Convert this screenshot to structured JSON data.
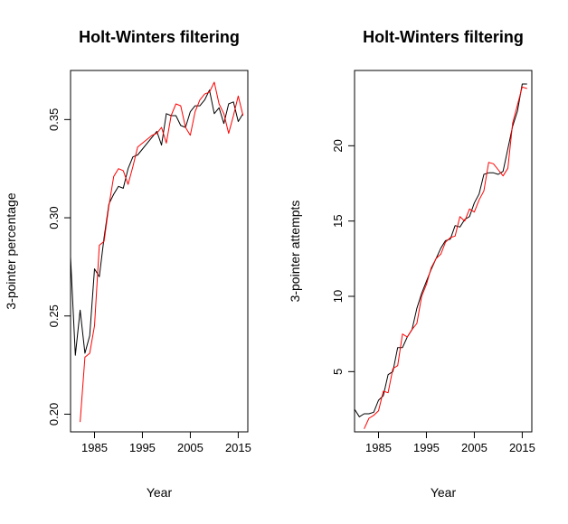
{
  "colors": {
    "observed": "#000000",
    "fitted": "#ff0000"
  },
  "chart_data": [
    {
      "type": "line",
      "title": "Holt-Winters filtering",
      "xlabel": "Year",
      "ylabel": "3-pointer percentage",
      "xlim": [
        1980,
        2017
      ],
      "ylim": [
        0.191,
        0.375
      ],
      "xticks": [
        1985,
        1995,
        2005,
        2015
      ],
      "yticks": [
        0.2,
        0.25,
        0.3,
        0.35
      ],
      "ytick_labels": [
        "0.20",
        "0.25",
        "0.30",
        "0.35"
      ],
      "grid": false,
      "series": [
        {
          "role": "observed",
          "color": "#000000",
          "x": [
            1980,
            1981,
            1982,
            1983,
            1984,
            1985,
            1986,
            1987,
            1988,
            1989,
            1990,
            1991,
            1992,
            1993,
            1994,
            1995,
            1996,
            1997,
            1998,
            1999,
            2000,
            2001,
            2002,
            2003,
            2004,
            2005,
            2006,
            2007,
            2008,
            2009,
            2010,
            2011,
            2012,
            2013,
            2014,
            2015,
            2016
          ],
          "values": [
            0.28,
            0.23,
            0.253,
            0.231,
            0.24,
            0.274,
            0.27,
            0.29,
            0.307,
            0.312,
            0.316,
            0.315,
            0.325,
            0.331,
            0.332,
            0.335,
            0.338,
            0.341,
            0.344,
            0.337,
            0.353,
            0.352,
            0.352,
            0.347,
            0.346,
            0.354,
            0.357,
            0.357,
            0.36,
            0.365,
            0.353,
            0.356,
            0.348,
            0.358,
            0.359,
            0.349,
            0.353
          ]
        },
        {
          "role": "fitted",
          "color": "#ff0000",
          "x": [
            1982,
            1983,
            1984,
            1985,
            1986,
            1987,
            1988,
            1989,
            1990,
            1991,
            1992,
            1993,
            1994,
            1995,
            1996,
            1997,
            1998,
            1999,
            2000,
            2001,
            2002,
            2003,
            2004,
            2005,
            2006,
            2007,
            2008,
            2009,
            2010,
            2011,
            2012,
            2013,
            2014,
            2015,
            2016
          ],
          "values": [
            0.196,
            0.229,
            0.231,
            0.245,
            0.286,
            0.288,
            0.306,
            0.321,
            0.325,
            0.324,
            0.317,
            0.326,
            0.336,
            0.338,
            0.34,
            0.342,
            0.343,
            0.346,
            0.338,
            0.352,
            0.358,
            0.357,
            0.346,
            0.342,
            0.354,
            0.36,
            0.363,
            0.364,
            0.369,
            0.358,
            0.353,
            0.343,
            0.352,
            0.362,
            0.352
          ]
        }
      ]
    },
    {
      "type": "line",
      "title": "Holt-Winters filtering",
      "xlabel": "Year",
      "ylabel": "3-pointer attempts",
      "xlim": [
        1980,
        2017
      ],
      "ylim": [
        1.0,
        25.0
      ],
      "xticks": [
        1985,
        1995,
        2005,
        2015
      ],
      "yticks": [
        5,
        10,
        15,
        20
      ],
      "ytick_labels": [
        "5",
        "10",
        "15",
        "20"
      ],
      "grid": false,
      "series": [
        {
          "role": "observed",
          "color": "#000000",
          "x": [
            1980,
            1981,
            1982,
            1983,
            1984,
            1985,
            1986,
            1987,
            1988,
            1989,
            1990,
            1991,
            1992,
            1993,
            1994,
            1995,
            1996,
            1997,
            1998,
            1999,
            2000,
            2001,
            2002,
            2003,
            2004,
            2005,
            2006,
            2007,
            2008,
            2009,
            2010,
            2011,
            2012,
            2013,
            2014,
            2015,
            2016
          ],
          "values": [
            2.5,
            2.0,
            2.2,
            2.2,
            2.3,
            3.1,
            3.4,
            4.8,
            5.0,
            6.6,
            6.6,
            7.3,
            7.8,
            9.2,
            10.2,
            11.0,
            11.8,
            12.5,
            13.2,
            13.7,
            13.8,
            14.7,
            14.6,
            15.1,
            15.3,
            16.2,
            16.8,
            18.1,
            18.2,
            18.2,
            18.1,
            18.3,
            19.8,
            21.3,
            22.3,
            24.1,
            24.1
          ]
        },
        {
          "role": "fitted",
          "color": "#ff0000",
          "x": [
            1982,
            1983,
            1984,
            1985,
            1986,
            1987,
            1988,
            1989,
            1990,
            1991,
            1992,
            1993,
            1994,
            1995,
            1996,
            1997,
            1998,
            1999,
            2000,
            2001,
            2002,
            2003,
            2004,
            2005,
            2006,
            2007,
            2008,
            2009,
            2010,
            2011,
            2012,
            2013,
            2014,
            2015,
            2016
          ],
          "values": [
            1.2,
            1.9,
            2.1,
            2.4,
            3.7,
            3.6,
            5.2,
            5.4,
            7.5,
            7.3,
            7.8,
            8.2,
            10.0,
            10.8,
            11.9,
            12.5,
            12.8,
            13.6,
            13.9,
            14.0,
            15.3,
            15.0,
            15.8,
            15.6,
            16.4,
            17.0,
            18.9,
            18.8,
            18.4,
            18.0,
            18.5,
            21.5,
            22.7,
            23.9,
            23.8
          ]
        }
      ]
    }
  ]
}
